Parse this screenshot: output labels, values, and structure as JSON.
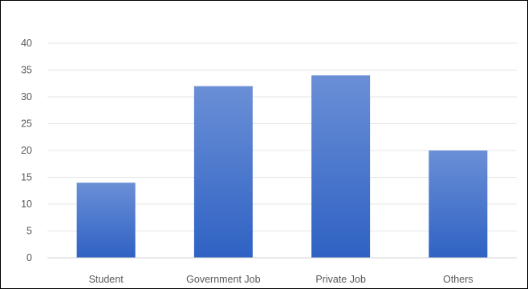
{
  "chart_data": {
    "type": "bar",
    "categories": [
      "Student",
      "Government Job",
      "Private Job",
      "Others"
    ],
    "values": [
      14,
      32,
      34,
      20
    ],
    "title": "",
    "xlabel": "",
    "ylabel": "",
    "ylim": [
      0,
      40
    ],
    "yticks": [
      "0",
      "5",
      "10",
      "15",
      "20",
      "25",
      "30",
      "35",
      "40"
    ],
    "grid": true,
    "legend": "none",
    "colors": {
      "bar_top": "#6A8FD6",
      "bar_bottom": "#2F62C4",
      "gridline": "#E4E4E4",
      "axis_line": "#D0D0D0",
      "text": "#595959",
      "border": "#000000"
    }
  }
}
